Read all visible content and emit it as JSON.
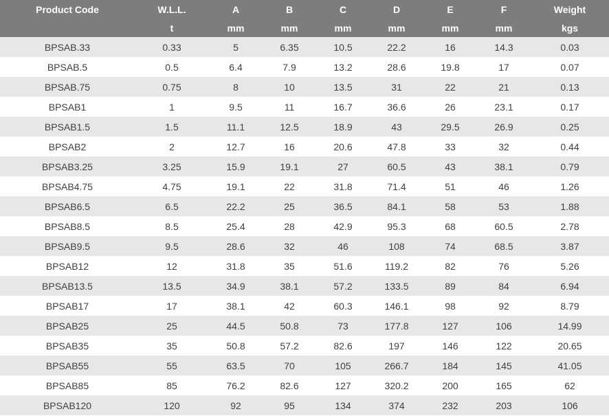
{
  "table": {
    "headers": [
      "Product Code",
      "W.L.L.",
      "A",
      "B",
      "C",
      "D",
      "E",
      "F",
      "Weight"
    ],
    "units": [
      "",
      "t",
      "mm",
      "mm",
      "mm",
      "mm",
      "mm",
      "mm",
      "kgs"
    ],
    "rows": [
      [
        "BPSAB.33",
        "0.33",
        "5",
        "6.35",
        "10.5",
        "22.2",
        "16",
        "14.3",
        "0.03"
      ],
      [
        "BPSAB.5",
        "0.5",
        "6.4",
        "7.9",
        "13.2",
        "28.6",
        "19.8",
        "17",
        "0.07"
      ],
      [
        "BPSAB.75",
        "0.75",
        "8",
        "10",
        "13.5",
        "31",
        "22",
        "21",
        "0.13"
      ],
      [
        "BPSAB1",
        "1",
        "9.5",
        "11",
        "16.7",
        "36.6",
        "26",
        "23.1",
        "0.17"
      ],
      [
        "BPSAB1.5",
        "1.5",
        "11.1",
        "12.5",
        "18.9",
        "43",
        "29.5",
        "26.9",
        "0.25"
      ],
      [
        "BPSAB2",
        "2",
        "12.7",
        "16",
        "20.6",
        "47.8",
        "33",
        "32",
        "0.44"
      ],
      [
        "BPSAB3.25",
        "3.25",
        "15.9",
        "19.1",
        "27",
        "60.5",
        "43",
        "38.1",
        "0.79"
      ],
      [
        "BPSAB4.75",
        "4.75",
        "19.1",
        "22",
        "31.8",
        "71.4",
        "51",
        "46",
        "1.26"
      ],
      [
        "BPSAB6.5",
        "6.5",
        "22.2",
        "25",
        "36.5",
        "84.1",
        "58",
        "53",
        "1.88"
      ],
      [
        "BPSAB8.5",
        "8.5",
        "25.4",
        "28",
        "42.9",
        "95.3",
        "68",
        "60.5",
        "2.78"
      ],
      [
        "BPSAB9.5",
        "9.5",
        "28.6",
        "32",
        "46",
        "108",
        "74",
        "68.5",
        "3.87"
      ],
      [
        "BPSAB12",
        "12",
        "31.8",
        "35",
        "51.6",
        "119.2",
        "82",
        "76",
        "5.26"
      ],
      [
        "BPSAB13.5",
        "13.5",
        "34.9",
        "38.1",
        "57.2",
        "133.5",
        "89",
        "84",
        "6.94"
      ],
      [
        "BPSAB17",
        "17",
        "38.1",
        "42",
        "60.3",
        "146.1",
        "98",
        "92",
        "8.79"
      ],
      [
        "BPSAB25",
        "25",
        "44.5",
        "50.8",
        "73",
        "177.8",
        "127",
        "106",
        "14.99"
      ],
      [
        "BPSAB35",
        "35",
        "50.8",
        "57.2",
        "82.6",
        "197",
        "146",
        "122",
        "20.65"
      ],
      [
        "BPSAB55",
        "55",
        "63.5",
        "70",
        "105",
        "266.7",
        "184",
        "145",
        "41.05"
      ],
      [
        "BPSAB85",
        "85",
        "76.2",
        "82.6",
        "127",
        "320.2",
        "200",
        "165",
        "62"
      ],
      [
        "BPSAB120",
        "120",
        "92",
        "95",
        "134",
        "374",
        "232",
        "203",
        "106"
      ]
    ]
  }
}
